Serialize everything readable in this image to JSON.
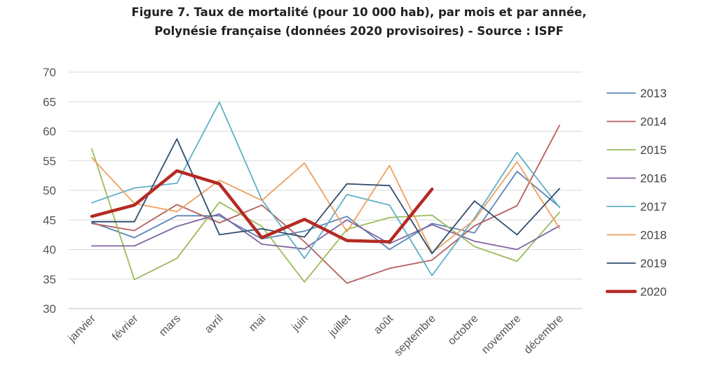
{
  "title_line1": "Figure 7. Taux de mortalité (pour 10 000 hab), par mois et par année,",
  "title_line2": "Polynésie française (données 2020 provisoires) - Source : ISPF",
  "chart_data": {
    "type": "line",
    "title": "Figure 7. Taux de mortalité (pour 10 000 hab), par mois et par année, Polynésie française (données 2020 provisoires) - Source : ISPF",
    "categories": [
      "janvier",
      "février",
      "mars",
      "avril",
      "mai",
      "juin",
      "juillet",
      "août",
      "septembre",
      "octobre",
      "novembre",
      "décembre"
    ],
    "ylim": [
      30,
      70
    ],
    "yticks": [
      30,
      35,
      40,
      45,
      50,
      55,
      60,
      65,
      70
    ],
    "grid": "horizontal",
    "legend_position": "right",
    "series": [
      {
        "name": "2013",
        "color": "#5b86b7",
        "values": [
          44.6,
          42.0,
          45.7,
          45.7,
          41.8,
          43.1,
          45.6,
          40.0,
          44.4,
          42.8,
          53.2,
          47.2
        ]
      },
      {
        "name": "2014",
        "color": "#b5605e",
        "values": [
          44.4,
          43.2,
          47.6,
          44.5,
          47.5,
          41.3,
          34.3,
          36.8,
          38.2,
          44.0,
          47.4,
          61.0
        ]
      },
      {
        "name": "2015",
        "color": "#9bbb59",
        "values": [
          57.0,
          34.9,
          38.5,
          48.0,
          43.9,
          34.5,
          43.4,
          45.4,
          45.8,
          40.5,
          38.0,
          46.3
        ]
      },
      {
        "name": "2016",
        "color": "#8064a2",
        "values": [
          40.6,
          40.6,
          43.9,
          46.0,
          40.9,
          40.1,
          45.0,
          41.0,
          44.2,
          41.4,
          40.0,
          44.0
        ]
      },
      {
        "name": "2017",
        "color": "#5fb0c8",
        "values": [
          47.9,
          50.4,
          51.2,
          64.9,
          48.4,
          38.5,
          49.3,
          47.5,
          35.6,
          45.3,
          56.4,
          47.1
        ]
      },
      {
        "name": "2018",
        "color": "#eda15e",
        "values": [
          55.5,
          47.8,
          46.4,
          51.7,
          48.3,
          54.6,
          43.0,
          54.2,
          39.5,
          45.0,
          54.8,
          43.6
        ]
      },
      {
        "name": "2019",
        "color": "#2f4d6f",
        "values": [
          44.7,
          44.7,
          58.7,
          42.5,
          43.5,
          42.1,
          51.1,
          50.8,
          39.3,
          48.2,
          42.5,
          50.3
        ]
      },
      {
        "name": "2020",
        "color": "#b52a24",
        "bold": true,
        "values": [
          45.6,
          47.5,
          53.3,
          51.1,
          42.0,
          45.1,
          41.5,
          41.3,
          50.2,
          null,
          null,
          null
        ]
      }
    ]
  }
}
